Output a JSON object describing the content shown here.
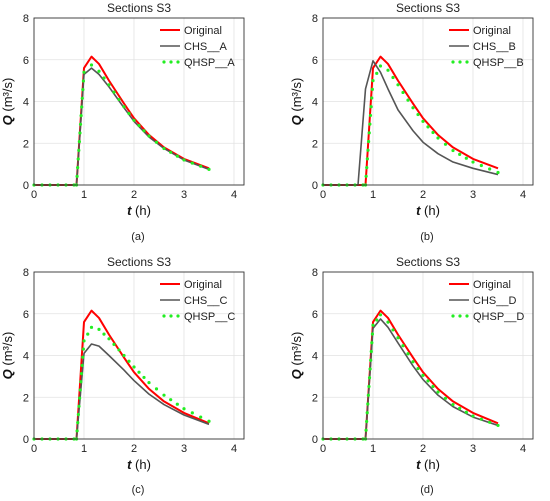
{
  "chart_data": [
    {
      "type": "line",
      "panel_label": "(a)",
      "title": "Sections S3",
      "xlabel_var": "t",
      "xlabel_unit": " (h)",
      "ylabel_var": "Q",
      "ylabel_unit": "(m³/s)",
      "xlim": [
        0,
        4.2
      ],
      "ylim": [
        0,
        8
      ],
      "xticks": [
        0,
        1,
        2,
        3,
        4
      ],
      "yticks": [
        0,
        2,
        4,
        6,
        8
      ],
      "legend": "top-right",
      "series": [
        {
          "name": "Original",
          "color": "#ff0000",
          "style": "solid",
          "x": [
            0,
            0.8,
            0.85,
            1.0,
            1.15,
            1.3,
            1.5,
            1.8,
            2.0,
            2.3,
            2.6,
            3.0,
            3.5
          ],
          "y": [
            0,
            0,
            0,
            5.6,
            6.15,
            5.8,
            5.0,
            3.9,
            3.2,
            2.4,
            1.8,
            1.25,
            0.8
          ]
        },
        {
          "name": "CHS__A",
          "color": "#555555",
          "style": "solid",
          "x": [
            0,
            0.8,
            0.85,
            1.0,
            1.15,
            1.3,
            1.5,
            1.8,
            2.0,
            2.3,
            2.6,
            3.0,
            3.5
          ],
          "y": [
            0,
            0,
            0,
            5.3,
            5.6,
            5.3,
            4.7,
            3.7,
            3.05,
            2.3,
            1.75,
            1.2,
            0.75
          ]
        },
        {
          "name": "QHSP__A",
          "color": "#22ee22",
          "style": "dots",
          "x": [
            0,
            0.8,
            0.85,
            1.0,
            1.15,
            1.3,
            1.5,
            1.8,
            2.0,
            2.3,
            2.6,
            3.0,
            3.5
          ],
          "y": [
            0,
            0,
            0,
            5.4,
            5.75,
            5.45,
            4.8,
            3.75,
            3.1,
            2.35,
            1.75,
            1.2,
            0.75
          ]
        }
      ]
    },
    {
      "type": "line",
      "panel_label": "(b)",
      "title": "Sections S3",
      "xlabel_var": "t",
      "xlabel_unit": " (h)",
      "ylabel_var": "Q",
      "ylabel_unit": "(m³/s)",
      "xlim": [
        0,
        4.2
      ],
      "ylim": [
        0,
        8
      ],
      "xticks": [
        0,
        1,
        2,
        3,
        4
      ],
      "yticks": [
        0,
        2,
        4,
        6,
        8
      ],
      "legend": "top-right",
      "series": [
        {
          "name": "Original",
          "color": "#ff0000",
          "style": "solid",
          "x": [
            0,
            0.8,
            0.85,
            1.0,
            1.15,
            1.3,
            1.5,
            1.8,
            2.0,
            2.3,
            2.6,
            3.0,
            3.5
          ],
          "y": [
            0,
            0,
            0,
            5.6,
            6.15,
            5.8,
            5.0,
            3.9,
            3.2,
            2.4,
            1.8,
            1.25,
            0.8
          ]
        },
        {
          "name": "CHS__B",
          "color": "#555555",
          "style": "solid",
          "x": [
            0,
            0.65,
            0.7,
            0.85,
            1.0,
            1.15,
            1.3,
            1.5,
            1.8,
            2.0,
            2.3,
            2.6,
            3.0,
            3.5
          ],
          "y": [
            0,
            0,
            0,
            4.6,
            5.95,
            5.4,
            4.6,
            3.6,
            2.6,
            2.05,
            1.5,
            1.1,
            0.8,
            0.5
          ]
        },
        {
          "name": "QHSP__B",
          "color": "#22ee22",
          "style": "dots",
          "x": [
            0,
            0.8,
            0.85,
            1.0,
            1.15,
            1.3,
            1.5,
            1.8,
            2.0,
            2.3,
            2.6,
            3.0,
            3.5
          ],
          "y": [
            0,
            0,
            0,
            5.0,
            5.7,
            5.5,
            4.8,
            3.7,
            3.05,
            2.25,
            1.65,
            1.1,
            0.6
          ]
        }
      ]
    },
    {
      "type": "line",
      "panel_label": "(c)",
      "title": "Sections S3",
      "xlabel_var": "t",
      "xlabel_unit": " (h)",
      "ylabel_var": "Q",
      "ylabel_unit": "(m³/s)",
      "xlim": [
        0,
        4.2
      ],
      "ylim": [
        0,
        8
      ],
      "xticks": [
        0,
        1,
        2,
        3,
        4
      ],
      "yticks": [
        0,
        2,
        4,
        6,
        8
      ],
      "legend": "top-right",
      "series": [
        {
          "name": "Original",
          "color": "#ff0000",
          "style": "solid",
          "x": [
            0,
            0.8,
            0.85,
            1.0,
            1.15,
            1.3,
            1.5,
            1.8,
            2.0,
            2.3,
            2.6,
            3.0,
            3.5
          ],
          "y": [
            0,
            0,
            0,
            5.6,
            6.15,
            5.8,
            5.0,
            3.9,
            3.2,
            2.4,
            1.8,
            1.25,
            0.75
          ]
        },
        {
          "name": "CHS__C",
          "color": "#555555",
          "style": "solid",
          "x": [
            0,
            0.8,
            0.85,
            1.0,
            1.15,
            1.3,
            1.5,
            1.8,
            2.0,
            2.3,
            2.6,
            3.0,
            3.5
          ],
          "y": [
            0,
            0,
            0,
            4.1,
            4.55,
            4.45,
            4.0,
            3.3,
            2.8,
            2.15,
            1.65,
            1.15,
            0.7
          ]
        },
        {
          "name": "QHSP__C",
          "color": "#22ee22",
          "style": "dots",
          "x": [
            0,
            0.8,
            0.85,
            1.0,
            1.15,
            1.3,
            1.5,
            1.8,
            2.0,
            2.3,
            2.6,
            3.0,
            3.5
          ],
          "y": [
            0,
            0,
            0,
            4.7,
            5.35,
            5.25,
            4.8,
            4.0,
            3.45,
            2.7,
            2.1,
            1.45,
            0.85
          ]
        }
      ]
    },
    {
      "type": "line",
      "panel_label": "(d)",
      "title": "Sections S3",
      "xlabel_var": "t",
      "xlabel_unit": " (h)",
      "ylabel_var": "Q",
      "ylabel_unit": "(m³/s)",
      "xlim": [
        0,
        4.2
      ],
      "ylim": [
        0,
        8
      ],
      "xticks": [
        0,
        1,
        2,
        3,
        4
      ],
      "yticks": [
        0,
        2,
        4,
        6,
        8
      ],
      "legend": "top-right",
      "series": [
        {
          "name": "Original",
          "color": "#ff0000",
          "style": "solid",
          "x": [
            0,
            0.8,
            0.85,
            1.0,
            1.15,
            1.3,
            1.5,
            1.8,
            2.0,
            2.3,
            2.6,
            3.0,
            3.5
          ],
          "y": [
            0,
            0,
            0,
            5.6,
            6.15,
            5.8,
            5.0,
            3.9,
            3.2,
            2.4,
            1.8,
            1.25,
            0.75
          ]
        },
        {
          "name": "CHS__D",
          "color": "#555555",
          "style": "solid",
          "x": [
            0,
            0.8,
            0.85,
            1.0,
            1.15,
            1.3,
            1.5,
            1.8,
            2.0,
            2.3,
            2.6,
            3.0,
            3.5
          ],
          "y": [
            0,
            0,
            0,
            5.3,
            5.75,
            5.35,
            4.6,
            3.5,
            2.85,
            2.1,
            1.55,
            1.05,
            0.65
          ]
        },
        {
          "name": "QHSP__D",
          "color": "#22ee22",
          "style": "dots",
          "x": [
            0,
            0.8,
            0.85,
            1.0,
            1.15,
            1.3,
            1.5,
            1.8,
            2.0,
            2.3,
            2.6,
            3.0,
            3.5
          ],
          "y": [
            0,
            0,
            0,
            5.45,
            5.95,
            5.6,
            4.85,
            3.7,
            3.05,
            2.25,
            1.65,
            1.1,
            0.65
          ]
        }
      ]
    }
  ]
}
